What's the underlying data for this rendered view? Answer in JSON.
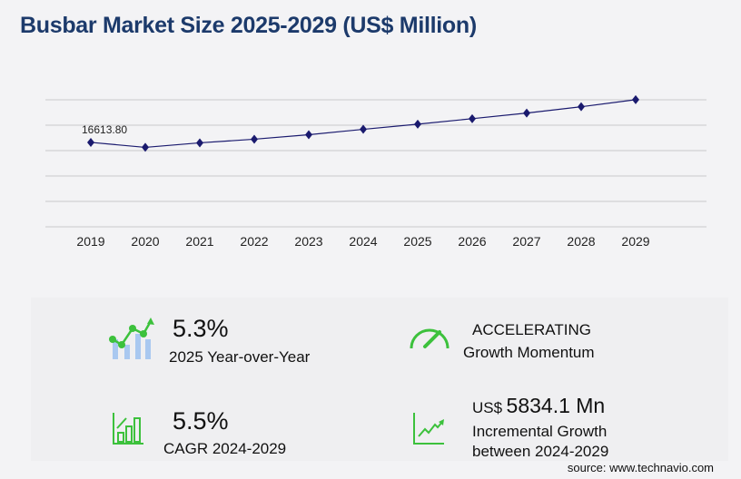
{
  "title": "Busbar Market Size 2025-2029 (US$ Million)",
  "chart_data": {
    "type": "line",
    "title": "Busbar Market Size 2025-2029 (US$ Million)",
    "categories": [
      "2019",
      "2020",
      "2021",
      "2022",
      "2023",
      "2024",
      "2025",
      "2026",
      "2027",
      "2028",
      "2029"
    ],
    "values": [
      16613.8,
      15640,
      16525,
      17240,
      18125,
      19190,
      20207,
      21280,
      22390,
      23630,
      25024
    ],
    "data_labels": {
      "0": "16613.80"
    },
    "ylim": [
      0,
      25000
    ],
    "grid": true,
    "line_color": "#1a1a6e"
  },
  "stats": {
    "yoy_value": "5.3%",
    "yoy_label": "2025 Year-over-Year",
    "momentum_value": "ACCELERATING",
    "momentum_label": "Growth Momentum",
    "cagr_value": "5.5%",
    "cagr_label": "CAGR 2024-2029",
    "incr_prefix": "US$",
    "incr_value": "5834.1 Mn",
    "incr_label1": "Incremental Growth",
    "incr_label2": "between 2024-2029"
  },
  "source": "source: www.technavio.com",
  "colors": {
    "title": "#1c3a6b",
    "green": "#3cc13c",
    "bar_blue": "#a9c8f0"
  }
}
